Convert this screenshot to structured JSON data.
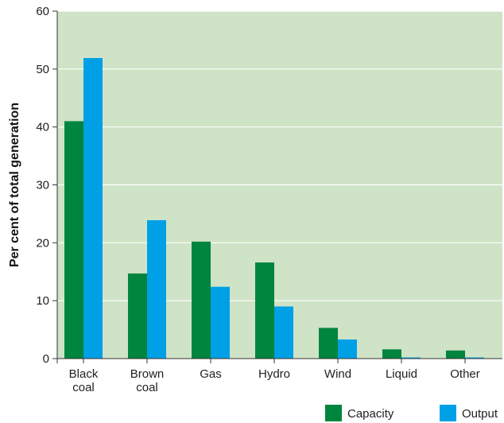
{
  "chart_data": {
    "type": "bar",
    "categories": [
      [
        "Black",
        "coal"
      ],
      [
        "Brown",
        "coal"
      ],
      [
        "Gas"
      ],
      [
        "Hydro"
      ],
      [
        "Wind"
      ],
      [
        "Liquid"
      ],
      [
        "Other"
      ]
    ],
    "series": [
      {
        "name": "Capacity",
        "values": [
          41,
          14.7,
          20.2,
          16.6,
          5.3,
          1.6,
          1.4
        ],
        "color": "#00853f"
      },
      {
        "name": "Output",
        "values": [
          51.9,
          23.9,
          12.4,
          9.0,
          3.3,
          0.2,
          0.2
        ],
        "color": "#00a0e6"
      }
    ],
    "title": "",
    "xlabel": "",
    "ylabel": "Per cent of total generation",
    "ylim": [
      0,
      60
    ],
    "yticks": [
      0,
      10,
      20,
      30,
      40,
      50,
      60
    ],
    "grid": true,
    "legend": "bottom-right",
    "plot_background": "#cfe3c6",
    "grid_color": "#ffffff"
  }
}
